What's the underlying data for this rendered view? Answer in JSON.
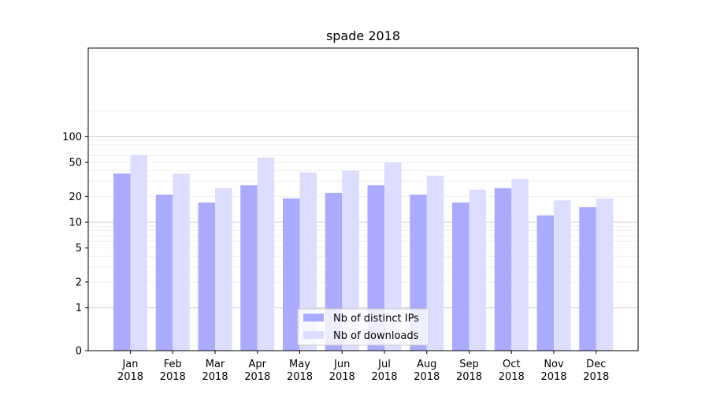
{
  "chart_data": {
    "type": "bar",
    "title": "spade 2018",
    "xlabel": "",
    "ylabel": "",
    "y_scale": "symlog",
    "y_ticks": [
      0,
      1,
      2,
      5,
      10,
      20,
      50,
      100
    ],
    "y_tick_labels": [
      "0",
      "1",
      "2",
      "5",
      "10",
      "20",
      "50",
      "100"
    ],
    "ylim": [
      0,
      130
    ],
    "grid": true,
    "legend_position": "bottom-center",
    "categories": [
      [
        "Jan",
        "2018"
      ],
      [
        "Feb",
        "2018"
      ],
      [
        "Mar",
        "2018"
      ],
      [
        "Apr",
        "2018"
      ],
      [
        "May",
        "2018"
      ],
      [
        "Jun",
        "2018"
      ],
      [
        "Jul",
        "2018"
      ],
      [
        "Aug",
        "2018"
      ],
      [
        "Sep",
        "2018"
      ],
      [
        "Oct",
        "2018"
      ],
      [
        "Nov",
        "2018"
      ],
      [
        "Dec",
        "2018"
      ]
    ],
    "series": [
      {
        "name": "Nb of distinct IPs",
        "color": "#aaaaff",
        "values": [
          37,
          21,
          17,
          27,
          19,
          22,
          27,
          21,
          17,
          25,
          12,
          15
        ]
      },
      {
        "name": "Nb of downloads",
        "color": "#ddddff",
        "values": [
          61,
          37,
          25,
          57,
          38,
          40,
          50,
          35,
          24,
          32,
          18,
          19
        ]
      }
    ]
  }
}
